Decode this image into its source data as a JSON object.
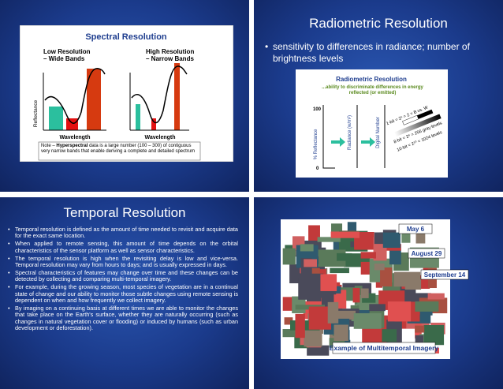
{
  "slides": [
    {
      "figure": {
        "title": "Spectral Resolution",
        "left_label": [
          "Low Resolution",
          "– Wide Bands"
        ],
        "right_label": [
          "High Resolution",
          "– Narrow Bands"
        ],
        "y_axis": "Reflectance",
        "x_axis_left": "Wavelength",
        "x_axis_right": "Wavelength",
        "note": [
          "Note –",
          "Hyperspectral",
          "data is a large number (100 – 300) of contiguous very narrow bands that enable deriving a complete and detailed spectrum"
        ]
      }
    },
    {
      "title": "Radiometric Resolution",
      "bullets": [
        "sensitivity to differences in radiance; number of brightness levels"
      ],
      "figure": {
        "title": "Radiometric Resolution",
        "subtitle": "...ability to discriminate differences in energy reflected (or emitted)",
        "tick_top": "100",
        "tick_bottom": "0",
        "axis_1": "% Reflectance",
        "axis_2": "Radiance (w/m²)",
        "axis_3": "Digital Number",
        "levels": [
          "1-bit = 2¹ = 2 = B vs. W",
          "8-bit = 2⁸ = 256 gray levels",
          "10-bit = 2¹⁰ = 1024 levels"
        ]
      }
    },
    {
      "title": "Temporal Resolution",
      "bullets": [
        "Temporal resolution is defined as the amount of time needed to revisit and acquire data for the exact same location.",
        "When applied to remote sensing, this amount of time depends on the orbital characteristics of the sensor platform as well as sensor characteristics.",
        "The temporal resolution is high when the revisiting delay is low and vice-versa. Temporal resolution may vary from hours to days; and is usually expressed in days.",
        "Spectral characteristics of features may change over time and these changes can be detected by collecting and comparing multi-temporal imagery.",
        "For example, during the growing season, most species of vegetation are in a continual state of change and our ability to monitor those subtle changes using remote sensing is dependent on when and how frequently we collect imagery.",
        "By imaging on a continuing basis at different times we are able to monitor the changes that take place on the Earth's surface, whether they are naturally occurring (such as changes in natural vegetation cover or flooding) or induced by humans (such as urban development or deforestation)."
      ]
    },
    {
      "figure": {
        "dates": [
          "May 6",
          "August 29",
          "September 14"
        ],
        "caption": "Example of Multitemporal Imagery"
      }
    }
  ]
}
